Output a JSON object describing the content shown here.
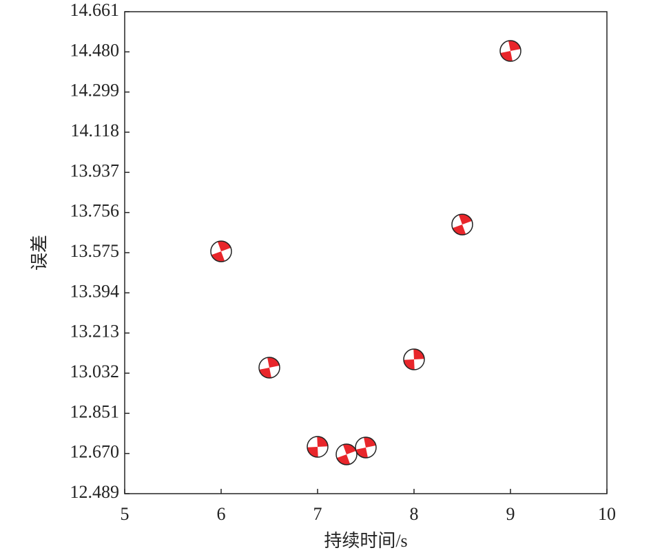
{
  "chart_data": {
    "type": "scatter",
    "xlabel": "持续时间/s",
    "ylabel": "误差",
    "x": [
      6,
      6.5,
      7,
      7.3,
      7.5,
      8,
      8.5,
      9
    ],
    "values": [
      13.581,
      13.057,
      12.7,
      12.666,
      12.697,
      13.094,
      13.702,
      14.484
    ],
    "color": "#e8262b",
    "xlim": [
      5,
      10
    ],
    "xticks": [
      5,
      6,
      7,
      8,
      9,
      10
    ],
    "ylim": [
      12.489,
      14.661
    ],
    "yticks": [
      12.489,
      {
        "value": 12.67,
        "label": "12.670"
      },
      12.851,
      13.032,
      13.213,
      13.394,
      13.575,
      13.756,
      13.937,
      14.118,
      14.299,
      {
        "value": 14.48,
        "label": "14.480"
      },
      14.661
    ]
  }
}
